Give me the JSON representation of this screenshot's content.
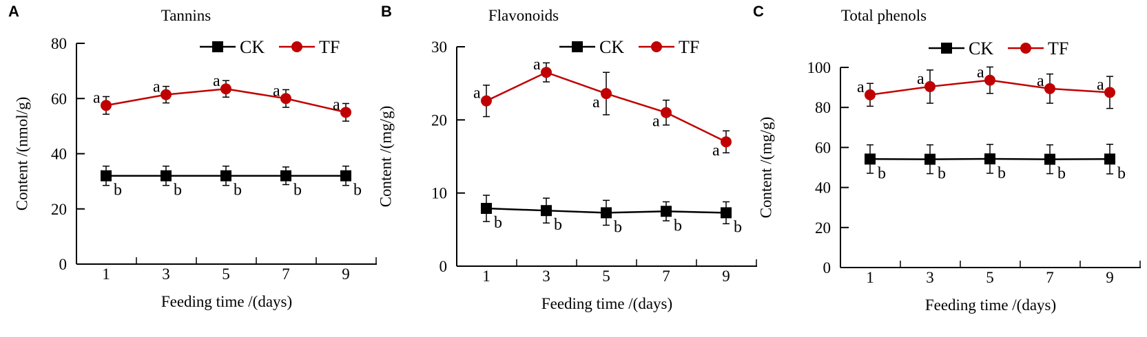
{
  "colors": {
    "CK": "#000000",
    "TF": "#c00000"
  },
  "chart_data": [
    {
      "type": "line",
      "panel": "A",
      "title": "Tannins",
      "xlabel": "Feeding time /(days)",
      "ylabel": "Content /(nmol/g)",
      "x": [
        1,
        3,
        5,
        7,
        9
      ],
      "ylim": [
        0,
        80
      ],
      "yticks": [
        0,
        20,
        40,
        60,
        80
      ],
      "legend": "top-right",
      "series": [
        {
          "name": "CK",
          "marker": "square",
          "values": [
            32,
            32,
            32,
            32,
            32
          ],
          "errors": [
            3.5,
            3.5,
            3.5,
            3.2,
            3.5
          ],
          "letters": [
            "b",
            "b",
            "b",
            "b",
            "b"
          ]
        },
        {
          "name": "TF",
          "marker": "circle",
          "values": [
            57.5,
            61.4,
            63.5,
            60.0,
            55.0
          ],
          "errors": [
            3.2,
            3.0,
            3.0,
            3.2,
            3.2
          ],
          "letters": [
            "a",
            "a",
            "a",
            "a",
            "a"
          ]
        }
      ]
    },
    {
      "type": "line",
      "panel": "B",
      "title": "Flavonoids",
      "xlabel": "Feeding time /(days)",
      "ylabel": "Content /(mg/g)",
      "x": [
        1,
        3,
        5,
        7,
        9
      ],
      "ylim": [
        0,
        30
      ],
      "yticks": [
        0,
        10,
        20,
        30
      ],
      "legend": "top-right",
      "series": [
        {
          "name": "CK",
          "marker": "square",
          "values": [
            7.9,
            7.6,
            7.3,
            7.5,
            7.3
          ],
          "errors": [
            1.8,
            1.7,
            1.7,
            1.3,
            1.5
          ],
          "letters": [
            "b",
            "b",
            "b",
            "b",
            "b"
          ]
        },
        {
          "name": "TF",
          "marker": "circle",
          "values": [
            22.6,
            26.5,
            23.6,
            21.0,
            17.0
          ],
          "errors": [
            2.15,
            1.3,
            2.9,
            1.7,
            1.5
          ],
          "letters": [
            "a",
            "a",
            "a",
            "a",
            "a"
          ]
        }
      ]
    },
    {
      "type": "line",
      "panel": "C",
      "title": "Total phenols",
      "xlabel": "Feeding time /(days)",
      "ylabel": "Content /(mg/g)",
      "x": [
        1,
        3,
        5,
        7,
        9
      ],
      "ylim": [
        0,
        100
      ],
      "yticks": [
        0,
        20,
        40,
        60,
        80,
        100
      ],
      "legend": "top-right",
      "series": [
        {
          "name": "CK",
          "marker": "square",
          "values": [
            54.2,
            54.1,
            54.3,
            54.1,
            54.2
          ],
          "errors": [
            7.1,
            7.2,
            7.2,
            7.2,
            7.4
          ],
          "letters": [
            "b",
            "b",
            "b",
            "b",
            "b"
          ]
        },
        {
          "name": "TF",
          "marker": "circle",
          "values": [
            86.3,
            90.4,
            93.6,
            89.4,
            87.5
          ],
          "errors": [
            5.7,
            8.3,
            6.6,
            7.3,
            8.0
          ],
          "letters": [
            "a",
            "a",
            "a",
            "a",
            "a"
          ]
        }
      ]
    }
  ]
}
